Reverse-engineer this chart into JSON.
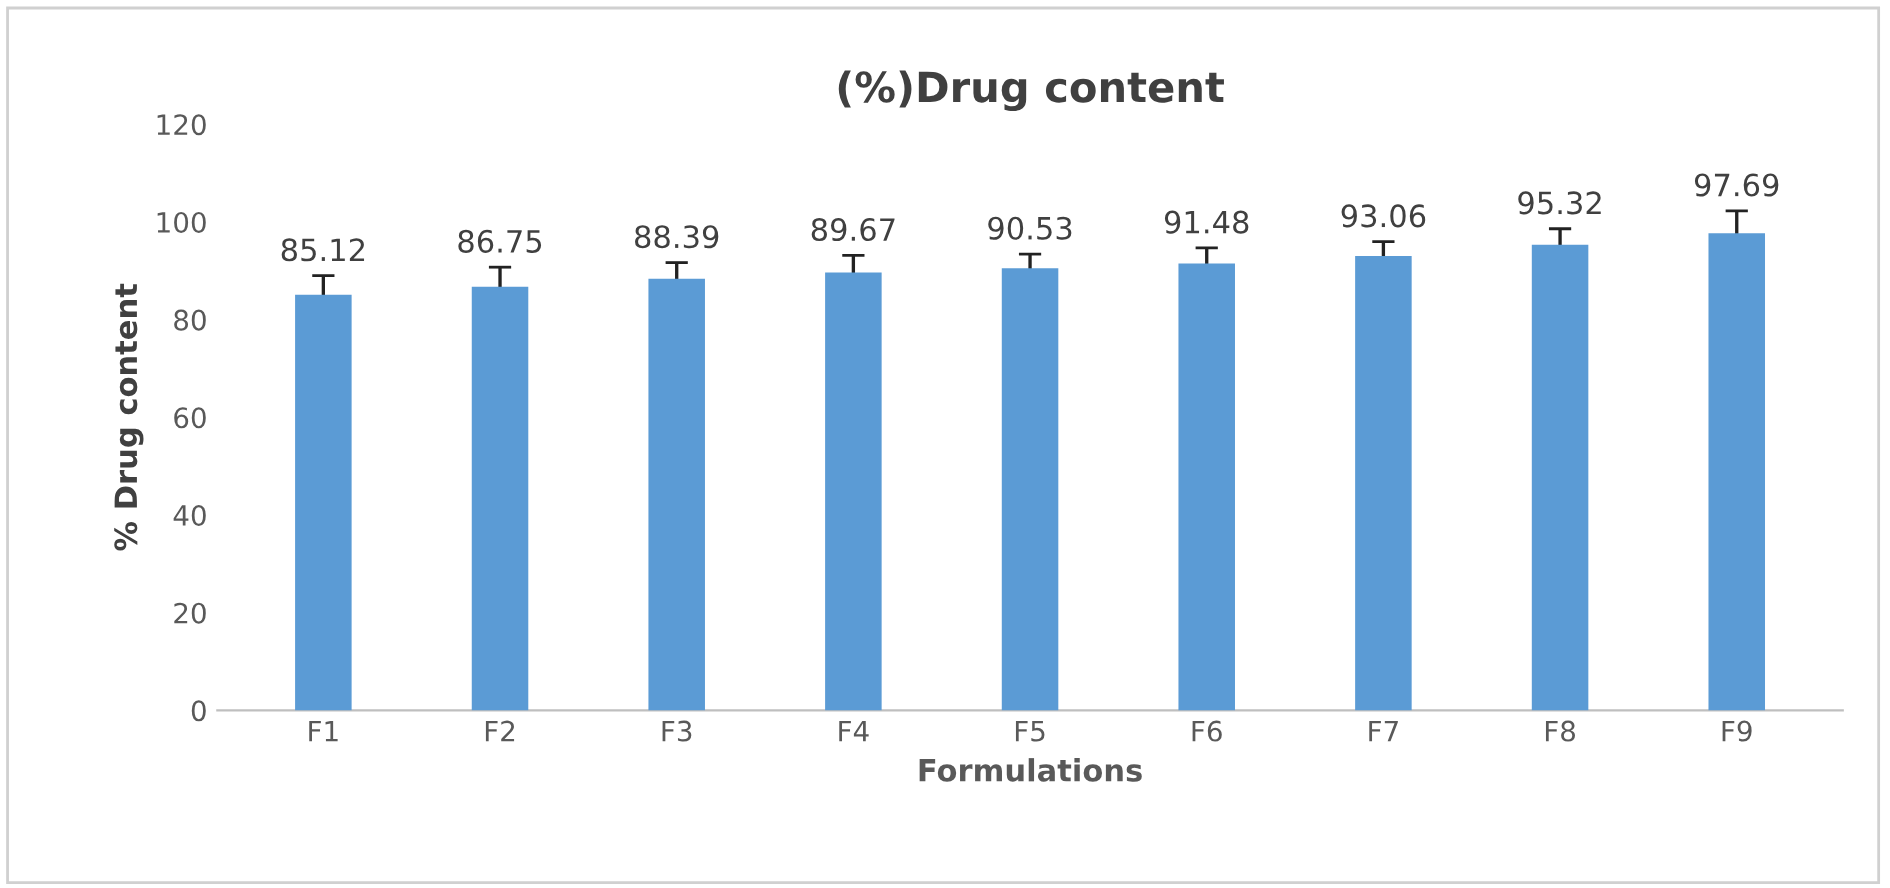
{
  "chart_data": {
    "type": "bar",
    "title": "(%)Drug content",
    "xlabel": "Formulations",
    "ylabel": "% Drug content",
    "categories": [
      "F1",
      "F2",
      "F3",
      "F4",
      "F5",
      "F6",
      "F7",
      "F8",
      "F9"
    ],
    "values": [
      85.12,
      86.75,
      88.39,
      89.67,
      90.53,
      91.48,
      93.06,
      95.32,
      97.69
    ],
    "errors": [
      3.9,
      4,
      3.3,
      3.5,
      2.9,
      3.2,
      2.9,
      3.3,
      4.6
    ],
    "color": "#5b9bd5",
    "ylim": [
      0,
      120
    ],
    "yticks": [
      0,
      20,
      40,
      60,
      80,
      100,
      120
    ],
    "grid": false,
    "data_labels": true
  }
}
